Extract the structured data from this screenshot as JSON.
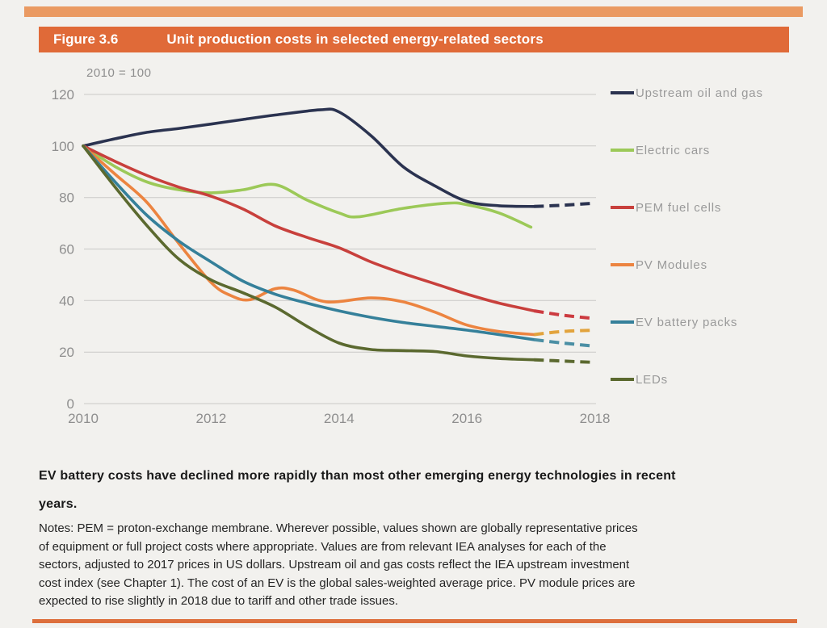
{
  "header": {
    "figure_label": "Figure 3.6",
    "title": "Unit production costs in selected energy-related sectors"
  },
  "chart_data": {
    "type": "line",
    "title": "Unit production costs in selected energy-related sectors",
    "index_note": "2010 = 100",
    "xlim": [
      2010,
      2018
    ],
    "ylim": [
      0,
      120
    ],
    "x_ticks": [
      2010,
      2012,
      2014,
      2016,
      2018
    ],
    "y_ticks": [
      0,
      20,
      40,
      60,
      80,
      100,
      120
    ],
    "grid": true,
    "legend_position": "right",
    "dashed_note": "dashed segments are 2018 projections",
    "series": [
      {
        "name": "Upstream oil and gas",
        "color": "#2b3350",
        "dashed_color": "#2b3350",
        "solid": [
          [
            2010,
            100
          ],
          [
            2010.5,
            102.8
          ],
          [
            2011,
            105.3
          ],
          [
            2011.5,
            106.8
          ],
          [
            2012,
            108.5
          ],
          [
            2012.5,
            110.3
          ],
          [
            2013,
            112
          ],
          [
            2013.7,
            114
          ],
          [
            2014,
            113.2
          ],
          [
            2014.5,
            104
          ],
          [
            2015,
            92
          ],
          [
            2015.5,
            84.5
          ],
          [
            2016,
            78.5
          ],
          [
            2016.5,
            76.8
          ],
          [
            2017.05,
            76.5
          ]
        ],
        "dashed": [
          [
            2017.05,
            76.5
          ],
          [
            2017.5,
            77
          ],
          [
            2018,
            77.8
          ]
        ]
      },
      {
        "name": "Electric cars",
        "color": "#9cc958",
        "dashed_color": "#9cc958",
        "solid": [
          [
            2010,
            100
          ],
          [
            2010.5,
            92
          ],
          [
            2011,
            86
          ],
          [
            2011.5,
            83
          ],
          [
            2012,
            81.8
          ],
          [
            2012.5,
            83
          ],
          [
            2013,
            85
          ],
          [
            2013.5,
            79
          ],
          [
            2014,
            74
          ],
          [
            2014.3,
            72.5
          ],
          [
            2015,
            75.8
          ],
          [
            2015.7,
            77.8
          ],
          [
            2016,
            77.2
          ],
          [
            2016.5,
            74
          ],
          [
            2017,
            68.5
          ]
        ],
        "dashed": []
      },
      {
        "name": "PEM fuel cells",
        "color": "#c8403c",
        "dashed_color": "#cc3b40",
        "solid": [
          [
            2010,
            100
          ],
          [
            2010.5,
            94
          ],
          [
            2011,
            88.5
          ],
          [
            2011.5,
            84
          ],
          [
            2012,
            80.5
          ],
          [
            2012.5,
            75.5
          ],
          [
            2013,
            69
          ],
          [
            2013.5,
            64.5
          ],
          [
            2014,
            60.5
          ],
          [
            2014.5,
            55
          ],
          [
            2015,
            50.5
          ],
          [
            2015.5,
            46.5
          ],
          [
            2016,
            42.5
          ],
          [
            2016.5,
            39
          ],
          [
            2017.05,
            36
          ]
        ],
        "dashed": [
          [
            2017.05,
            36
          ],
          [
            2017.5,
            34.3
          ],
          [
            2018,
            33
          ]
        ]
      },
      {
        "name": "PV Modules",
        "color": "#ec8440",
        "dashed_color": "#e2a33c",
        "solid": [
          [
            2010,
            100
          ],
          [
            2010.5,
            89
          ],
          [
            2011,
            78
          ],
          [
            2011.5,
            62
          ],
          [
            2012,
            47
          ],
          [
            2012.3,
            42
          ],
          [
            2012.6,
            40.3
          ],
          [
            2013,
            44.6
          ],
          [
            2013.3,
            44
          ],
          [
            2013.8,
            39.5
          ],
          [
            2014.5,
            41
          ],
          [
            2015,
            39.5
          ],
          [
            2015.5,
            35.5
          ],
          [
            2016,
            30.5
          ],
          [
            2016.5,
            28
          ],
          [
            2017.05,
            26.8
          ]
        ],
        "dashed": [
          [
            2017.05,
            26.8
          ],
          [
            2017.5,
            28
          ],
          [
            2018,
            28.5
          ]
        ]
      },
      {
        "name": "EV battery packs",
        "color": "#35809a",
        "dashed_color": "#4b8fa4",
        "solid": [
          [
            2010,
            100
          ],
          [
            2010.5,
            86
          ],
          [
            2011,
            73
          ],
          [
            2011.5,
            63
          ],
          [
            2012,
            55
          ],
          [
            2012.5,
            47.5
          ],
          [
            2013,
            42.5
          ],
          [
            2013.5,
            39
          ],
          [
            2014,
            36
          ],
          [
            2014.5,
            33.5
          ],
          [
            2015,
            31.5
          ],
          [
            2015.5,
            30
          ],
          [
            2016,
            28.5
          ],
          [
            2016.5,
            26.8
          ],
          [
            2017.05,
            24.8
          ]
        ],
        "dashed": [
          [
            2017.05,
            24.8
          ],
          [
            2017.5,
            23.5
          ],
          [
            2018,
            22.3
          ]
        ]
      },
      {
        "name": "LEDs",
        "color": "#5b692f",
        "dashed_color": "#5b692f",
        "solid": [
          [
            2010,
            100
          ],
          [
            2010.5,
            84
          ],
          [
            2011,
            69
          ],
          [
            2011.5,
            56
          ],
          [
            2012,
            48
          ],
          [
            2012.5,
            43
          ],
          [
            2013,
            37.5
          ],
          [
            2013.5,
            30
          ],
          [
            2014,
            23.5
          ],
          [
            2014.5,
            21
          ],
          [
            2015,
            20.6
          ],
          [
            2015.5,
            20.2
          ],
          [
            2016,
            18.5
          ],
          [
            2016.5,
            17.5
          ],
          [
            2017.05,
            17
          ]
        ],
        "dashed": [
          [
            2017.05,
            17
          ],
          [
            2017.5,
            16.5
          ],
          [
            2018,
            16
          ]
        ]
      }
    ]
  },
  "caption": {
    "lines": [
      "EV battery costs have declined more rapidly than most other emerging energy technologies in recent",
      "years."
    ]
  },
  "notes": {
    "lines": [
      "Notes: PEM = proton-exchange membrane. Wherever possible, values shown are globally representative prices",
      "of equipment or full project costs where appropriate. Values are from relevant IEA analyses for each of the",
      "sectors, adjusted to 2017 prices in US dollars. Upstream oil and gas costs reflect the IEA upstream investment",
      "cost index (see Chapter 1). The cost of an EV is the global sales-weighted average price. PV module prices are",
      "expected to rise slightly in 2018 due to tariff and other trade issues."
    ]
  }
}
